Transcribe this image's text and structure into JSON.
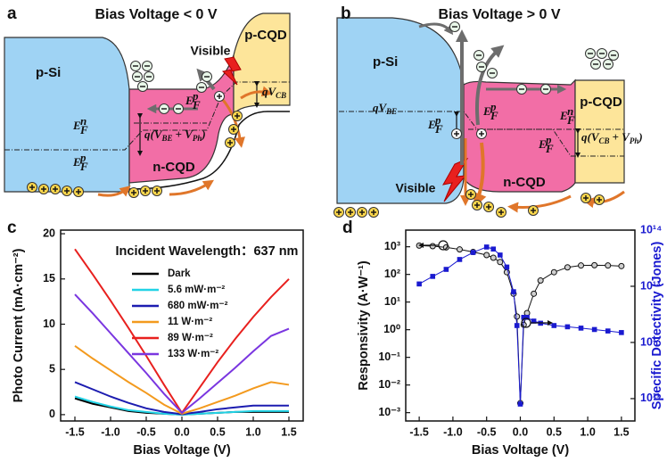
{
  "panel_a": {
    "label": "a",
    "title": "Bias Voltage < 0 V",
    "p_si": "p-Si",
    "n_cqd": "n-CQD",
    "p_cqd": "p-CQD",
    "light": "Visible",
    "qv_cb": [
      "qV",
      "CB"
    ],
    "q_be_ph": [
      "q(V",
      "BE",
      "+ V",
      "Ph",
      ")"
    ],
    "fermi": [
      [
        "E",
        "p",
        "F"
      ],
      [
        "E",
        "n",
        "F"
      ],
      [
        "E",
        "p",
        "F"
      ]
    ]
  },
  "panel_b": {
    "label": "b",
    "title": "Bias Voltage > 0 V",
    "p_si": "p-Si",
    "n_cqd": "n-CQD",
    "p_cqd": "p-CQD",
    "light": "Visible",
    "qv_be": [
      "qV",
      "BE"
    ],
    "q_cb_ph": [
      "q(V",
      "CB",
      "+ V",
      "Ph",
      ")"
    ],
    "fermi": [
      [
        "E",
        "p",
        "F"
      ],
      [
        "E",
        "p",
        "F"
      ],
      [
        "E",
        "n",
        "F"
      ],
      [
        "E",
        "p",
        "F"
      ]
    ]
  },
  "chart_labels": [
    "c",
    "d"
  ],
  "chart_data": [
    {
      "type": "line",
      "title": "Incident Wavelength：637 nm",
      "xlabel": "Bias Voltage (V)",
      "ylabel": "Photo Current (mA·cm⁻²)",
      "x": [
        -1.5,
        -1.25,
        -1,
        -0.75,
        -0.5,
        -0.25,
        0,
        0.25,
        0.5,
        0.75,
        1,
        1.25,
        1.5
      ],
      "xlim": [
        -1.7,
        1.7
      ],
      "xticks": [
        -1.5,
        {
          "value": -1,
          "label": "-1.0"
        },
        -0.5,
        {
          "value": 0,
          "label": "0.0"
        },
        0.5,
        {
          "value": 1,
          "label": "1.0"
        },
        1.5
      ],
      "ylim": [
        -0.7,
        20.4
      ],
      "yticks": [
        0,
        5,
        10,
        15,
        20
      ],
      "legend": "upper-center",
      "series": [
        {
          "name": "Dark",
          "color": "#000000",
          "values": [
            1.8,
            1.2,
            0.8,
            0.4,
            0.2,
            0.1,
            0,
            0.1,
            0.2,
            0.3,
            0.3,
            0.3,
            0.3
          ]
        },
        {
          "name": "5.6 mW·m⁻²",
          "color": "#22d3e6",
          "values": [
            2.0,
            1.4,
            0.9,
            0.5,
            0.3,
            0.1,
            0,
            0.1,
            0.2,
            0.3,
            0.4,
            0.4,
            0.4
          ]
        },
        {
          "name": "680 mW·m⁻²",
          "color": "#1c1cb0",
          "values": [
            3.6,
            2.8,
            2.0,
            1.3,
            0.7,
            0.3,
            0.05,
            0.3,
            0.6,
            0.8,
            1.0,
            1.0,
            1.0
          ]
        },
        {
          "name": "11 W·m⁻²",
          "color": "#f39a1e",
          "values": [
            7.6,
            6.2,
            4.9,
            3.6,
            2.4,
            1.1,
            0.1,
            0.7,
            1.4,
            2.1,
            2.9,
            3.6,
            3.3
          ]
        },
        {
          "name": "89 W·m⁻²",
          "color": "#e8201e",
          "values": [
            18.3,
            15.5,
            12.6,
            9.6,
            6.5,
            3.3,
            0.2,
            3.0,
            5.8,
            8.4,
            10.8,
            13.0,
            15.0
          ]
        },
        {
          "name": "133 W·m⁻²",
          "color": "#7a36e0",
          "values": [
            13.3,
            11.2,
            9.0,
            6.8,
            4.6,
            2.3,
            0.2,
            1.8,
            3.5,
            5.2,
            7.0,
            8.7,
            9.5
          ]
        }
      ]
    },
    {
      "type": "line",
      "xlabel": "Bias Voltage (V)",
      "ylabel": "Responsivity (A·W⁻¹)",
      "y2label": "Specific Detectivity (Jones)",
      "x": [
        -1.5,
        -1.3,
        -1.1,
        -0.9,
        -0.7,
        -0.5,
        -0.4,
        -0.3,
        -0.2,
        -0.1,
        -0.05,
        0,
        0.05,
        0.1,
        0.2,
        0.3,
        0.5,
        0.7,
        0.9,
        1.1,
        1.3,
        1.5
      ],
      "xlim": [
        -1.7,
        1.7
      ],
      "xticks": [
        -1.5,
        {
          "value": -1,
          "label": "-1.0"
        },
        -0.5,
        {
          "value": 0,
          "label": "0.0"
        },
        0.5,
        {
          "value": 1,
          "label": "1.0"
        },
        1.5
      ],
      "ylog": true,
      "ylim": [
        0.0005,
        4000
      ],
      "yticks": [
        {
          "value": 0.001,
          "label": "10⁻³"
        },
        {
          "value": 0.01,
          "label": "10⁻²"
        },
        {
          "value": 0.1,
          "label": "10⁻¹"
        },
        {
          "value": 1,
          "label": "10⁰"
        },
        {
          "value": 10,
          "label": "10¹"
        },
        {
          "value": 100,
          "label": "10²"
        },
        {
          "value": 1000,
          "label": "10³"
        }
      ],
      "y2log": true,
      "y2lim": [
        40000000000,
        100000000000000
      ],
      "y2ticks": [
        {
          "value": 100000000000,
          "label": "10¹¹"
        },
        {
          "value": 1000000000000,
          "label": "10¹²"
        },
        {
          "value": 10000000000000,
          "label": "10¹³"
        },
        {
          "value": 100000000000000,
          "label": "10¹⁴"
        }
      ],
      "series": [
        {
          "color": "#111111",
          "marker": "circle",
          "values": [
            1100,
            1050,
            950,
            800,
            650,
            500,
            400,
            280,
            120,
            20,
            3,
            0.0022,
            1.5,
            4,
            20,
            60,
            120,
            180,
            210,
            215,
            210,
            200
          ]
        },
        {
          "color": "#1a1ad0",
          "marker": "square",
          "axis": "y2",
          "values": [
            11000000000000,
            15000000000000,
            20000000000000,
            30000000000000,
            40000000000000,
            50000000000000,
            46000000000000,
            36000000000000,
            22000000000000,
            8000000000000,
            2000000000000,
            80000000000,
            2800000000000,
            2800000000000,
            2400000000000,
            2200000000000,
            2000000000000,
            1900000000000,
            1800000000000,
            1700000000000,
            1600000000000,
            1500000000000
          ]
        }
      ]
    }
  ]
}
